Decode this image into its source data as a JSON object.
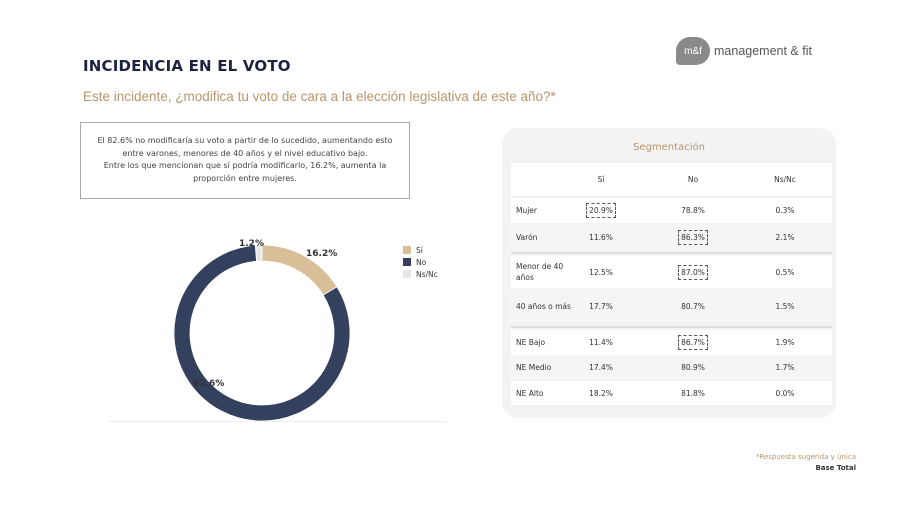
{
  "header": {
    "title": "INCIDENCIA EN EL VOTO",
    "subtitle": "Este incidente, ¿modifica tu voto de cara a la elección legislativa de este año?*",
    "logo_mark": "m&f",
    "logo_text": "management & fit"
  },
  "summary": [
    "El 82.6% no modificaría su voto a partir de lo sucedido, aumentando esto entre varones, menores de 40 años y el nivel educativo bajo.",
    "Entre los que mencionan que sí podría modificarlo, 16.2%, aumenta la proporción entre mujeres."
  ],
  "chart_data": {
    "type": "pie",
    "variant": "donut",
    "categories": [
      "Sí",
      "No",
      "Ns/Nc"
    ],
    "values": [
      16.2,
      82.6,
      1.2
    ],
    "labels": [
      "16.2%",
      "82.6%",
      "1.2%"
    ],
    "colors": [
      "#d8bf98",
      "#33405e",
      "#e6e6e6"
    ],
    "legend": "right"
  },
  "segmentation": {
    "title": "Segmentación",
    "columns": [
      "Sí",
      "No",
      "Ns/Nc"
    ],
    "rows": [
      {
        "label": "Mujer",
        "values": [
          "20.9%",
          "78.8%",
          "0.3%"
        ],
        "highlight": 0
      },
      {
        "label": "Varón",
        "values": [
          "11.6%",
          "86.3%",
          "2.1%"
        ],
        "highlight": 1
      },
      {
        "label": "Menor de 40 años",
        "values": [
          "12.5%",
          "87.0%",
          "0.5%"
        ],
        "highlight": 1
      },
      {
        "label": "40 años o más",
        "values": [
          "17.7%",
          "80.7%",
          "1.5%"
        ],
        "highlight": -1
      },
      {
        "label": "NE Bajo",
        "values": [
          "11.4%",
          "86.7%",
          "1.9%"
        ],
        "highlight": 1
      },
      {
        "label": "NE Medio",
        "values": [
          "17.4%",
          "80.9%",
          "1.7%"
        ],
        "highlight": -1
      },
      {
        "label": "NE Alto",
        "values": [
          "18.2%",
          "81.8%",
          "0.0%"
        ],
        "highlight": -1
      }
    ]
  },
  "footnote": {
    "note": "*Respuesta sugerida y única",
    "base": "Base Total"
  }
}
